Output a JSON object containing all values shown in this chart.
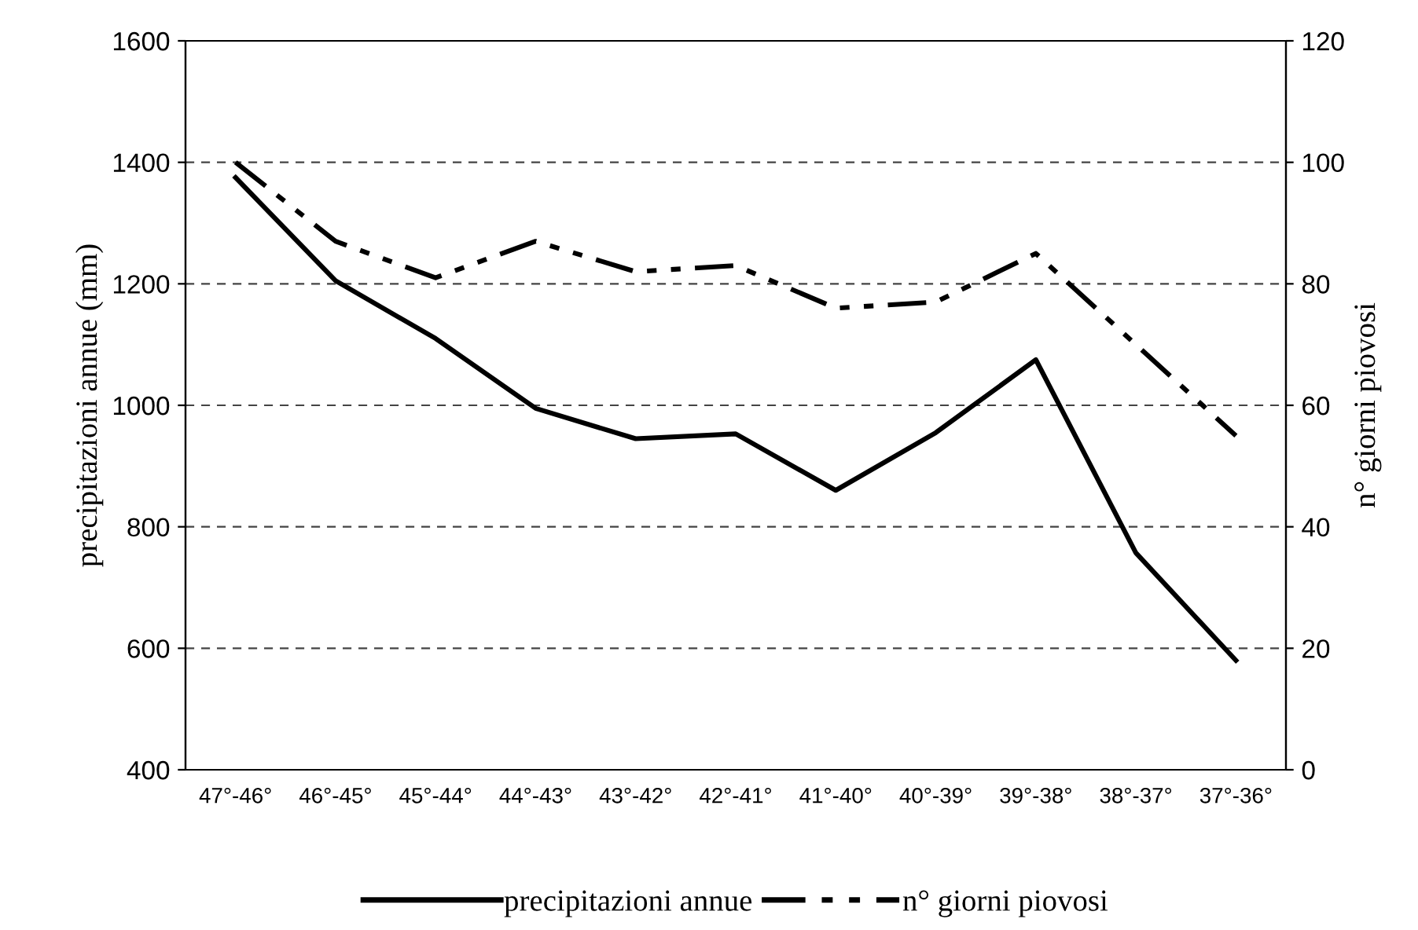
{
  "chart_data": {
    "type": "line",
    "ylabel": "precipitazioni annue (mm)",
    "y2label": "n° giorni piovosi",
    "categories": [
      "47°-46°",
      "46°-45°",
      "45°-44°",
      "44°-43°",
      "43°-42°",
      "42°-41°",
      "41°-40°",
      "40°-39°",
      "39°-38°",
      "38°-37°",
      "37°-36°"
    ],
    "series": [
      {
        "name": "precipitazioni annue",
        "color": "#000000",
        "line_style": "solid",
        "values": [
          1375,
          1205,
          1110,
          995,
          945,
          953,
          860,
          955,
          1075,
          757,
          580
        ]
      },
      {
        "name": "n° giorni piovosi",
        "color": "#000000",
        "line_style": "dashed",
        "axis": "y2",
        "values": [
          100,
          87,
          81,
          87,
          82,
          83,
          76,
          77,
          85,
          70,
          55
        ]
      }
    ],
    "ylim": [
      400,
      1600
    ],
    "yticks": [
      400,
      600,
      800,
      1000,
      1200,
      1400,
      1600
    ],
    "y2lim": [
      0,
      120
    ],
    "y2ticks": [
      0,
      20,
      40,
      60,
      80,
      100,
      120
    ],
    "grid": "y",
    "legend": "bottom",
    "marker": "none"
  }
}
